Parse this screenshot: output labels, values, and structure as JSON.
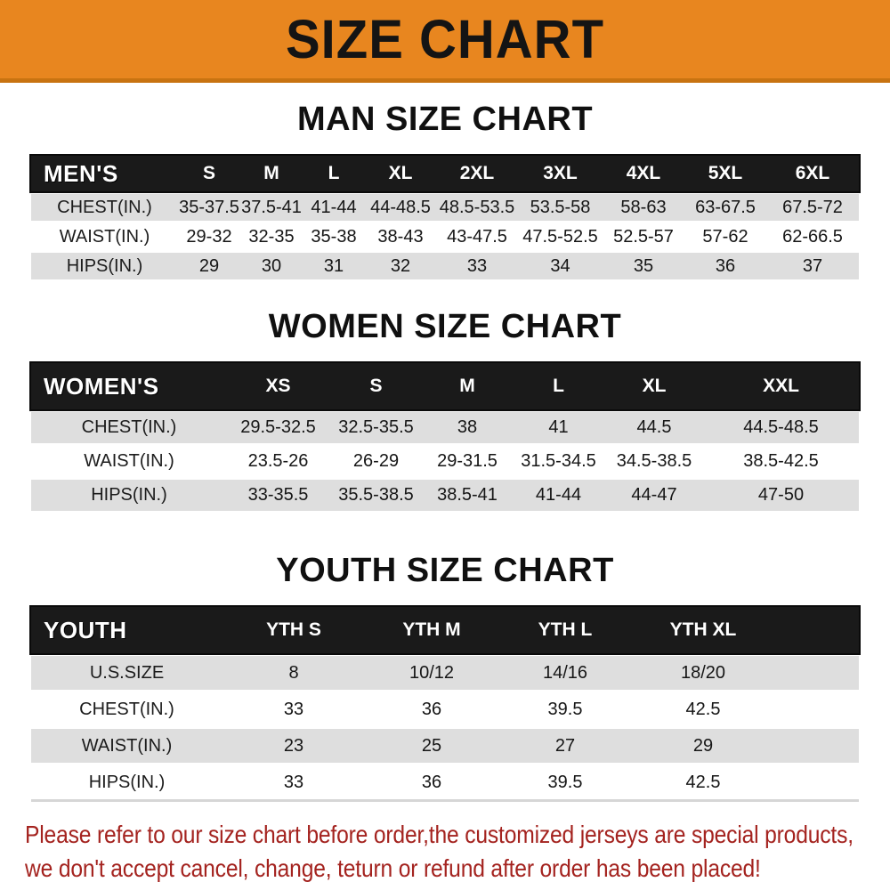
{
  "banner": {
    "title": "SIZE CHART"
  },
  "sections": [
    {
      "heading": "MAN SIZE CHART",
      "header_label": "MEN'S",
      "columns": [
        "S",
        "M",
        "L",
        "XL",
        "2XL",
        "3XL",
        "4XL",
        "5XL",
        "6XL"
      ],
      "rows": [
        {
          "label": "CHEST(IN.)",
          "values": [
            "35-37.5",
            "37.5-41",
            "41-44",
            "44-48.5",
            "48.5-53.5",
            "53.5-58",
            "58-63",
            "63-67.5",
            "67.5-72"
          ]
        },
        {
          "label": "WAIST(IN.)",
          "values": [
            "29-32",
            "32-35",
            "35-38",
            "38-43",
            "43-47.5",
            "47.5-52.5",
            "52.5-57",
            "57-62",
            "62-66.5"
          ]
        },
        {
          "label": "HIPS(IN.)",
          "values": [
            "29",
            "30",
            "31",
            "32",
            "33",
            "34",
            "35",
            "36",
            "37"
          ]
        }
      ]
    },
    {
      "heading": "WOMEN SIZE CHART",
      "header_label": "WOMEN'S",
      "columns": [
        "XS",
        "S",
        "M",
        "L",
        "XL",
        "XXL"
      ],
      "rows": [
        {
          "label": "CHEST(IN.)",
          "values": [
            "29.5-32.5",
            "32.5-35.5",
            "38",
            "41",
            "44.5",
            "44.5-48.5"
          ]
        },
        {
          "label": "WAIST(IN.)",
          "values": [
            "23.5-26",
            "26-29",
            "29-31.5",
            "31.5-34.5",
            "34.5-38.5",
            "38.5-42.5"
          ]
        },
        {
          "label": "HIPS(IN.)",
          "values": [
            "33-35.5",
            "35.5-38.5",
            "38.5-41",
            "41-44",
            "44-47",
            "47-50"
          ]
        }
      ]
    },
    {
      "heading": "YOUTH SIZE CHART",
      "header_label": "YOUTH",
      "columns": [
        "YTH S",
        "YTH M",
        "YTH L",
        "YTH XL"
      ],
      "rows": [
        {
          "label": "U.S.SIZE",
          "values": [
            "8",
            "10/12",
            "14/16",
            "18/20"
          ]
        },
        {
          "label": "CHEST(IN.)",
          "values": [
            "33",
            "36",
            "39.5",
            "42.5"
          ]
        },
        {
          "label": "WAIST(IN.)",
          "values": [
            "23",
            "25",
            "27",
            "29"
          ]
        },
        {
          "label": "HIPS(IN.)",
          "values": [
            "33",
            "36",
            "39.5",
            "42.5"
          ]
        }
      ]
    }
  ],
  "disclaimer": {
    "line1": "Please refer to our size chart before order,the customized jerseys are special products,",
    "line2": "we don't accept cancel, change, teturn or refund after order has been placed!"
  },
  "colors": {
    "banner_bg": "#E8861F",
    "banner_border": "#C87311",
    "banner_text": "#141414",
    "table_header_bg": "#1A1A1A",
    "table_header_text": "#FFFFFF",
    "row_alt_bg": "#DEDEDE",
    "row_bg": "#FFFFFF",
    "disclaimer_text": "#A4231F"
  }
}
